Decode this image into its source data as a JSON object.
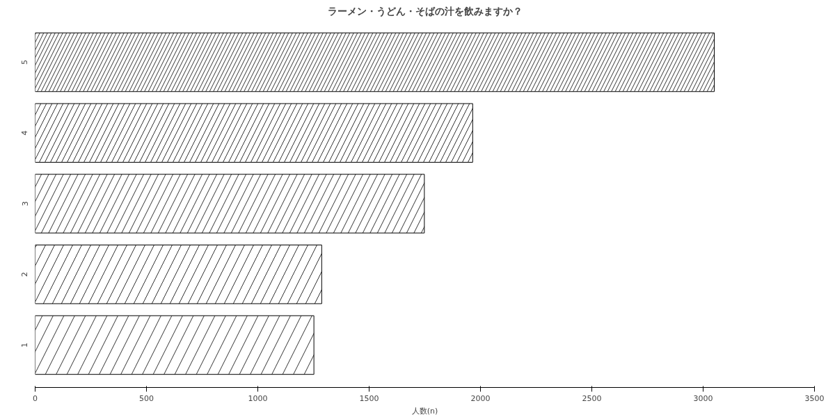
{
  "chart_data": {
    "type": "bar",
    "orientation": "horizontal",
    "title": "ラーメン・うどん・そばの汁を飲みますか？",
    "xlabel": "人数(n)",
    "categories": [
      "5",
      "4",
      "3",
      "2",
      "1"
    ],
    "values": [
      3050,
      1965,
      1748,
      1287,
      1252
    ],
    "color": "#000000",
    "xlim": [
      0,
      3500
    ],
    "xticks": [
      0,
      500,
      1000,
      1500,
      2000,
      2500,
      3000,
      3500
    ],
    "grid": false
  }
}
